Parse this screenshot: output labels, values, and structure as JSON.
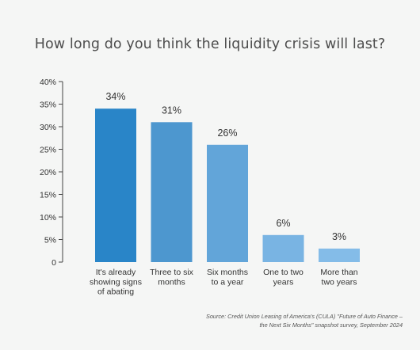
{
  "chart_data": {
    "type": "bar",
    "title": "How long do you think the liquidity crisis will last?",
    "categories": [
      [
        "It's already",
        "showing signs",
        "of abating"
      ],
      [
        "Three to six",
        "months"
      ],
      [
        "Six months",
        "to a year"
      ],
      [
        "One to two",
        "years"
      ],
      [
        "More than",
        "two years"
      ]
    ],
    "values": [
      34,
      31,
      26,
      6,
      3
    ],
    "data_labels": [
      "34%",
      "31%",
      "26%",
      "6%",
      "3%"
    ],
    "bar_colors": [
      "#2985c8",
      "#4d97cf",
      "#62a5d9",
      "#79b4e3",
      "#84bce8"
    ],
    "ylim": [
      0,
      40
    ],
    "yticks": [
      0,
      5,
      10,
      15,
      20,
      25,
      30,
      35,
      40
    ],
    "ytick_labels": [
      "0",
      "5%",
      "10%",
      "15%",
      "20%",
      "25%",
      "30%",
      "35%",
      "40%"
    ],
    "xlabel": "",
    "ylabel": "",
    "grid": false,
    "legend": "none"
  },
  "source": {
    "line1": "Source: Credit Union Leasing of America's (CULA) \"Future of Auto Finance –",
    "line2": "the Next Six Months\" snapshot survey, September 2024"
  }
}
